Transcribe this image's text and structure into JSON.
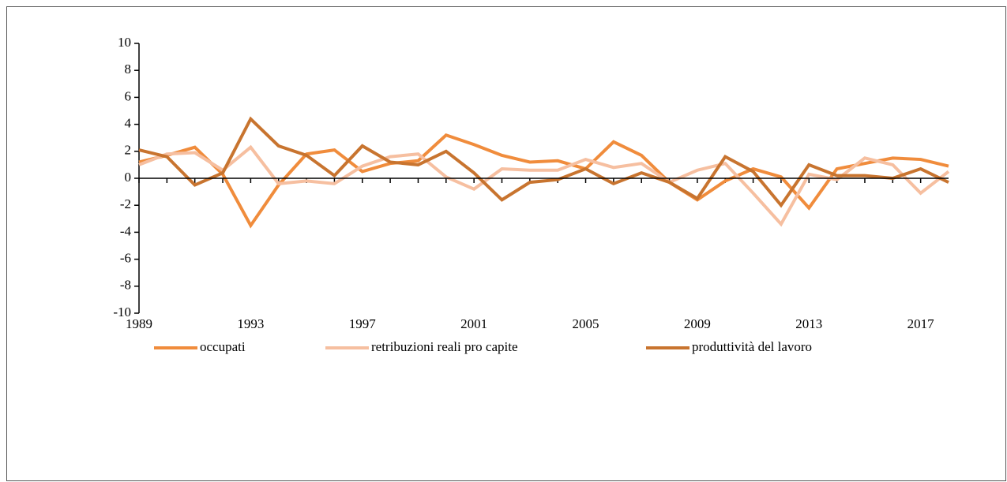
{
  "chart_data": {
    "type": "line",
    "x": [
      1989,
      1990,
      1991,
      1992,
      1993,
      1994,
      1995,
      1996,
      1997,
      1998,
      1999,
      2000,
      2001,
      2002,
      2003,
      2004,
      2005,
      2006,
      2007,
      2008,
      2009,
      2010,
      2011,
      2012,
      2013,
      2014,
      2015,
      2016,
      2017,
      2018
    ],
    "series": [
      {
        "name": "occupati",
        "color": "#f08c3c",
        "values": [
          1.2,
          1.7,
          2.3,
          0.3,
          -3.5,
          -0.5,
          1.8,
          2.1,
          0.5,
          1.1,
          1.3,
          3.2,
          2.5,
          1.7,
          1.2,
          1.3,
          0.7,
          2.7,
          1.7,
          -0.3,
          -1.6,
          -0.2,
          0.7,
          0.1,
          -2.2,
          0.7,
          1.1,
          1.5,
          1.4,
          0.9
        ]
      },
      {
        "name": "retribuzioni reali pro capite",
        "color": "#f6bfa0",
        "values": [
          1.0,
          1.8,
          1.9,
          0.6,
          2.3,
          -0.4,
          -0.2,
          -0.4,
          0.9,
          1.6,
          1.8,
          0.1,
          -0.8,
          0.7,
          0.6,
          0.6,
          1.4,
          0.8,
          1.1,
          -0.3,
          0.6,
          1.1,
          -1.1,
          -3.4,
          0.3,
          -0.1,
          1.5,
          1.0,
          -1.1,
          0.5
        ]
      },
      {
        "name": "produttività del lavoro",
        "color": "#c8742f",
        "values": [
          2.1,
          1.6,
          -0.5,
          0.4,
          4.4,
          2.4,
          1.7,
          0.2,
          2.4,
          1.2,
          1.0,
          2.0,
          0.4,
          -1.6,
          -0.3,
          -0.1,
          0.7,
          -0.4,
          0.4,
          -0.3,
          -1.5,
          1.6,
          0.5,
          -2.0,
          1.0,
          0.2,
          0.2,
          0.0,
          0.7,
          -0.3
        ]
      }
    ],
    "xlim": [
      1989,
      2018
    ],
    "xticks": [
      1989,
      1993,
      1997,
      2001,
      2005,
      2009,
      2013,
      2017
    ],
    "ylim": [
      -10,
      10
    ],
    "yticks": [
      -10,
      -8,
      -6,
      -4,
      -2,
      0,
      2,
      4,
      6,
      8,
      10
    ],
    "grid": false,
    "legend": "bottom"
  }
}
